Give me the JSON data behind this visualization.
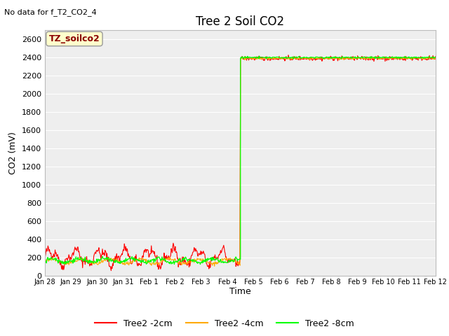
{
  "title": "Tree 2 Soil CO2",
  "no_data_text": "No data for f_T2_CO2_4",
  "ylabel": "CO2 (mV)",
  "xlabel": "Time",
  "ylim": [
    0,
    2700
  ],
  "yticks": [
    0,
    200,
    400,
    600,
    800,
    1000,
    1200,
    1400,
    1600,
    1800,
    2000,
    2200,
    2400,
    2600
  ],
  "legend_box_text": "TZ_soilco2",
  "legend_box_color": "#ffffcc",
  "legend_box_edge": "#999999",
  "fig_bg_color": "#ffffff",
  "plot_bg_color": "#eeeeee",
  "grid_color": "#ffffff",
  "series": {
    "red": {
      "label": "Tree2 -2cm",
      "color": "#ff0000"
    },
    "orange": {
      "label": "Tree2 -4cm",
      "color": "#ffaa00"
    },
    "green": {
      "label": "Tree2 -8cm",
      "color": "#00ff00"
    }
  },
  "x_tick_labels": [
    "Jan 28",
    "Jan 29",
    "Jan 30",
    "Jan 31",
    "Feb 1",
    "Feb 2",
    "Feb 3",
    "Feb 4",
    "Feb 5",
    "Feb 6",
    "Feb 7",
    "Feb 8",
    "Feb 9",
    "Feb 10",
    "Feb 11",
    "Feb 12"
  ],
  "n_days": 16,
  "jump_day": 8,
  "saturation_value": 2400,
  "title_fontsize": 12,
  "label_fontsize": 9,
  "tick_fontsize": 8,
  "legend_fontsize": 9
}
